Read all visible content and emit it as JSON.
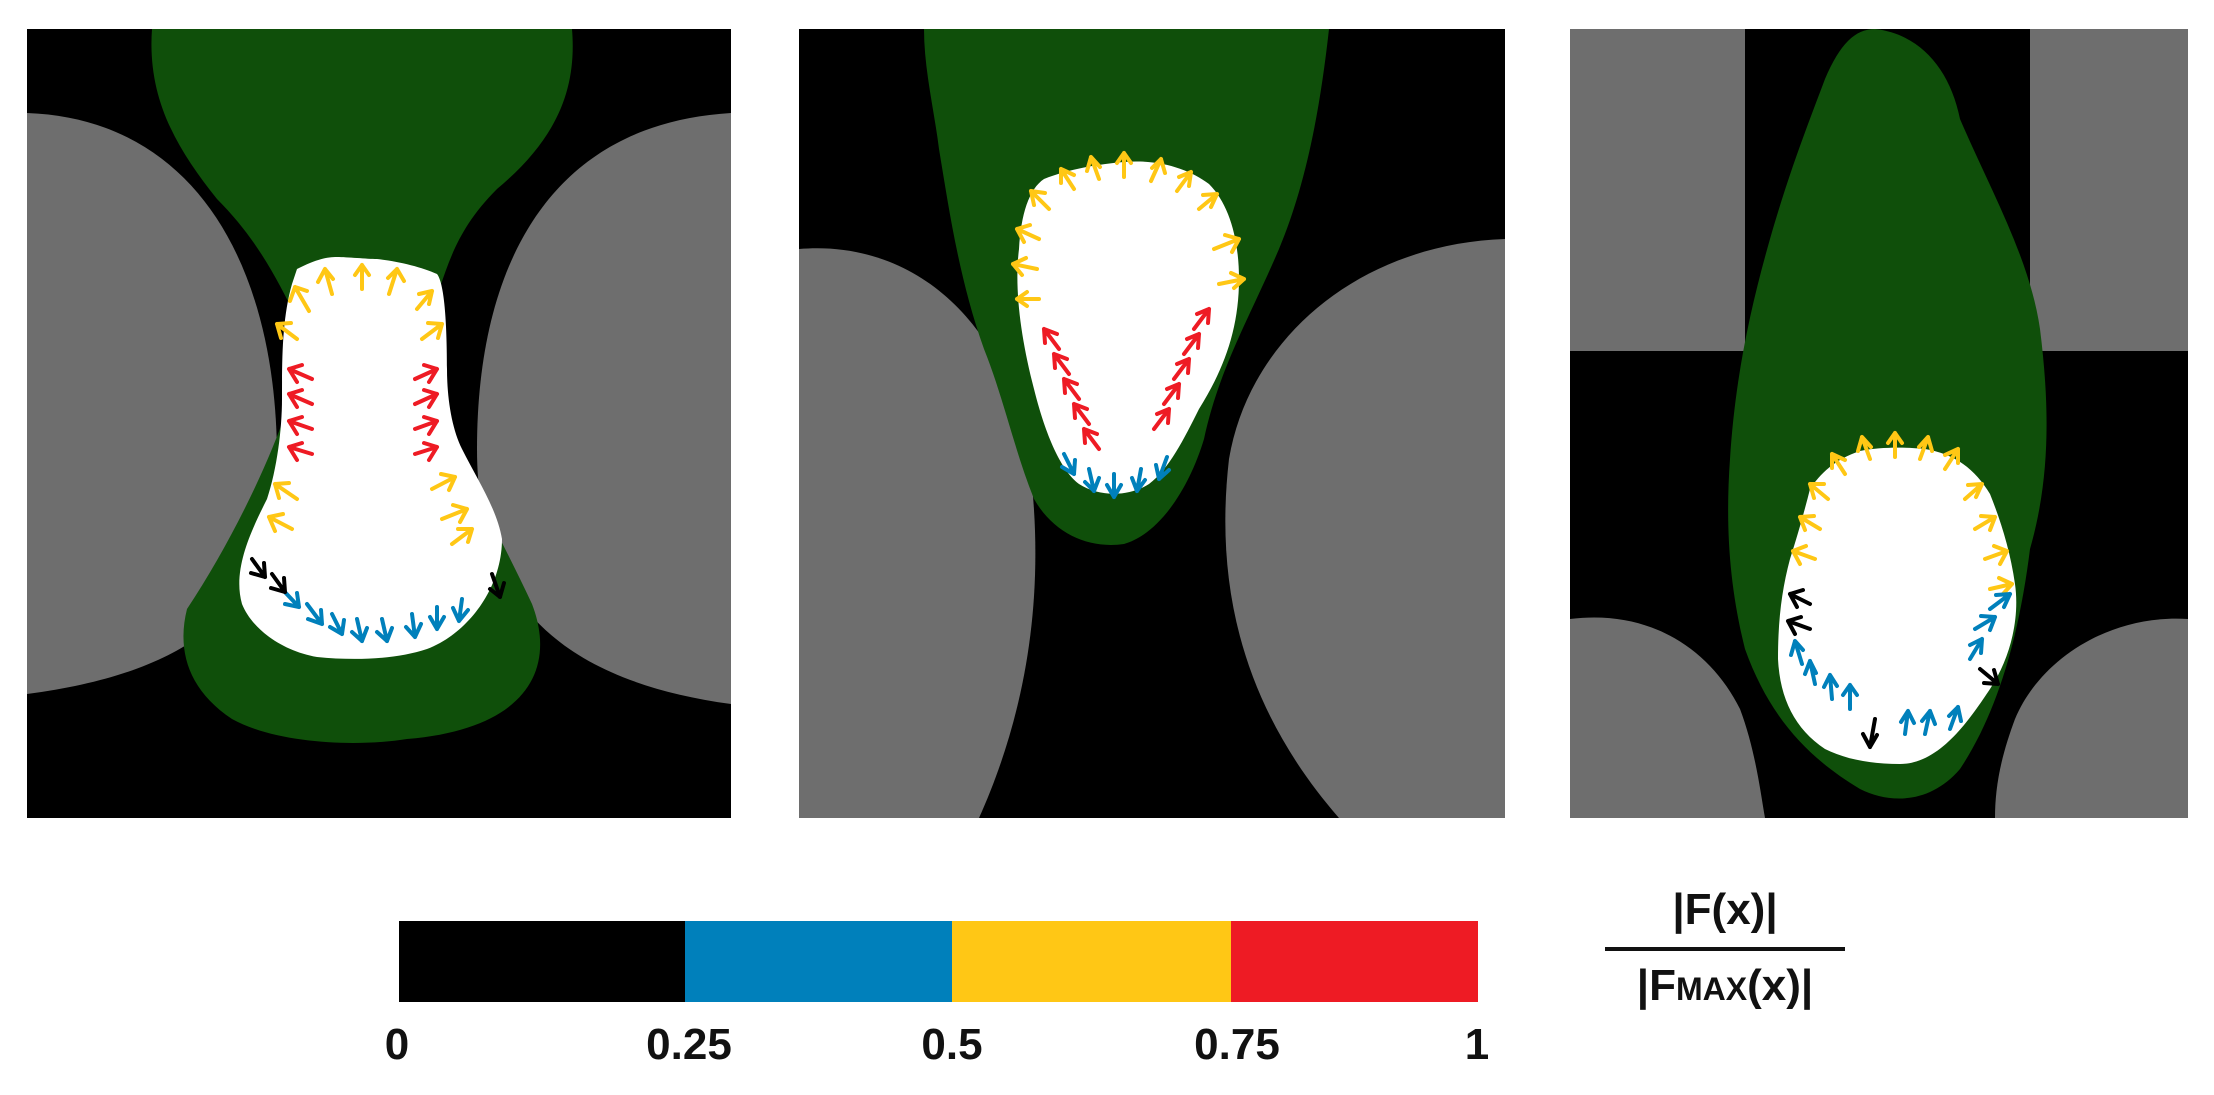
{
  "colors": {
    "background": "#000000",
    "obstacle": "#6e6e6e",
    "front": "#0f4f0a",
    "droplet": "#ffffff"
  },
  "colorbar": {
    "segments": [
      {
        "from": 0,
        "to": 0.25,
        "color": "#000000"
      },
      {
        "from": 0.25,
        "to": 0.5,
        "color": "#0080bb"
      },
      {
        "from": 0.5,
        "to": 0.75,
        "color": "#ffc715"
      },
      {
        "from": 0.75,
        "to": 1,
        "color": "#ee1b24"
      }
    ],
    "ticks": [
      "0",
      "0.25",
      "0.5",
      "0.75",
      "1"
    ]
  },
  "formula": {
    "numerator": "|F(x)|",
    "denominator_open": "|F",
    "denominator_sub": "MAX",
    "denominator_close": "(x)|"
  }
}
